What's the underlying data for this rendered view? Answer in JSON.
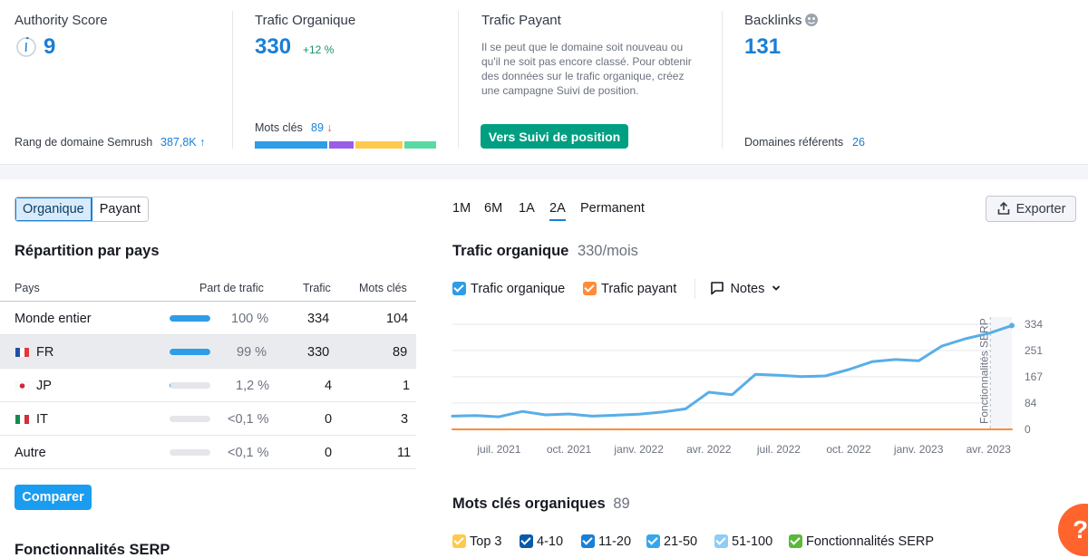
{
  "metrics": {
    "authority": {
      "title": "Authority Score",
      "value": "9",
      "footer_label": "Rang de domaine Semrush",
      "footer_value": "387,8K",
      "footer_arrow": "↑"
    },
    "organic": {
      "title": "Trafic Organique",
      "value": "330",
      "change": "+12 %",
      "kw_label": "Mots clés",
      "kw_value": "89",
      "kw_arrow": "↓"
    },
    "paid": {
      "title": "Trafic Payant",
      "description": "Il se peut que le domaine soit nouveau ou qu'il ne soit pas encore classé. Pour obtenir des données sur le trafic organique, créez une campagne Suivi de position.",
      "cta": "Vers Suivi de position"
    },
    "backlinks": {
      "title": "Backlinks",
      "value": "131",
      "footer_label": "Domaines référents",
      "footer_value": "26"
    }
  },
  "toggle": {
    "organic": "Organique",
    "paid": "Payant"
  },
  "countries": {
    "title": "Répartition par pays",
    "headers": {
      "country": "Pays",
      "share": "Part de trafic",
      "traffic": "Trafic",
      "keywords": "Mots clés"
    },
    "rows": [
      {
        "name": "Monde entier",
        "share": "100 %",
        "traffic": "334",
        "keywords": "104",
        "share_fraction": 1.0
      },
      {
        "name": "FR",
        "share": "99 %",
        "traffic": "330",
        "keywords": "89",
        "share_fraction": 0.99
      },
      {
        "name": "JP",
        "share": "1,2 %",
        "traffic": "4",
        "keywords": "1",
        "share_fraction": 0.012
      },
      {
        "name": "IT",
        "share": "<0,1 %",
        "traffic": "0",
        "keywords": "3",
        "share_fraction": 0.0
      },
      {
        "name": "Autre",
        "share": "<0,1 %",
        "traffic": "0",
        "keywords": "11",
        "share_fraction": 0.0
      }
    ],
    "compare_button": "Comparer"
  },
  "serp_title": "Fonctionnalités SERP",
  "ranges": [
    "1M",
    "6M",
    "1A",
    "2A",
    "Permanent"
  ],
  "selected_range": "2A",
  "export_label": "Exporter",
  "traffic_chart": {
    "title": "Trafic organique",
    "subtitle": "330/mois",
    "legend": {
      "organic": "Trafic organique",
      "paid": "Trafic payant",
      "notes": "Notes"
    },
    "serp_marker": "Fonctionnalités SERP"
  },
  "chart_data": {
    "type": "line",
    "title": "Trafic organique",
    "subtitle": "330/mois",
    "x_tick_labels": [
      "juil. 2021",
      "oct. 2021",
      "janv. 2022",
      "avr. 2022",
      "juil. 2022",
      "oct. 2022",
      "janv. 2023",
      "avr. 2023"
    ],
    "y_tick_labels": [
      "334",
      "251",
      "167",
      "84",
      "0"
    ],
    "ylim": [
      0,
      334
    ],
    "x_months": [
      "2021-05",
      "2021-06",
      "2021-07",
      "2021-08",
      "2021-09",
      "2021-10",
      "2021-11",
      "2021-12",
      "2022-01",
      "2022-02",
      "2022-03",
      "2022-04",
      "2022-05",
      "2022-06",
      "2022-07",
      "2022-08",
      "2022-09",
      "2022-10",
      "2022-11",
      "2022-12",
      "2023-01",
      "2023-02",
      "2023-03",
      "2023-04",
      "2023-05"
    ],
    "series": [
      {
        "name": "Trafic organique",
        "color": "#58aee8",
        "values": [
          42,
          44,
          40,
          57,
          46,
          49,
          42,
          45,
          48,
          55,
          65,
          118,
          110,
          175,
          172,
          168,
          170,
          190,
          215,
          222,
          218,
          265,
          288,
          305,
          330
        ]
      },
      {
        "name": "Trafic payant",
        "color": "#ff8c39",
        "values": [
          0,
          0,
          0,
          0,
          0,
          0,
          0,
          0,
          0,
          0,
          0,
          0,
          0,
          0,
          0,
          0,
          0,
          0,
          0,
          0,
          0,
          0,
          0,
          0,
          0
        ]
      }
    ],
    "grid": true
  },
  "keywords_section": {
    "title": "Mots clés organiques",
    "count": "89",
    "legend": [
      "Top 3",
      "4-10",
      "11-20",
      "21-50",
      "51-100",
      "Fonctionnalités SERP"
    ]
  },
  "colors": {
    "accent": "#1a7fd6",
    "cta": "#009f81",
    "help": "#ff642d"
  },
  "help_label": "?"
}
